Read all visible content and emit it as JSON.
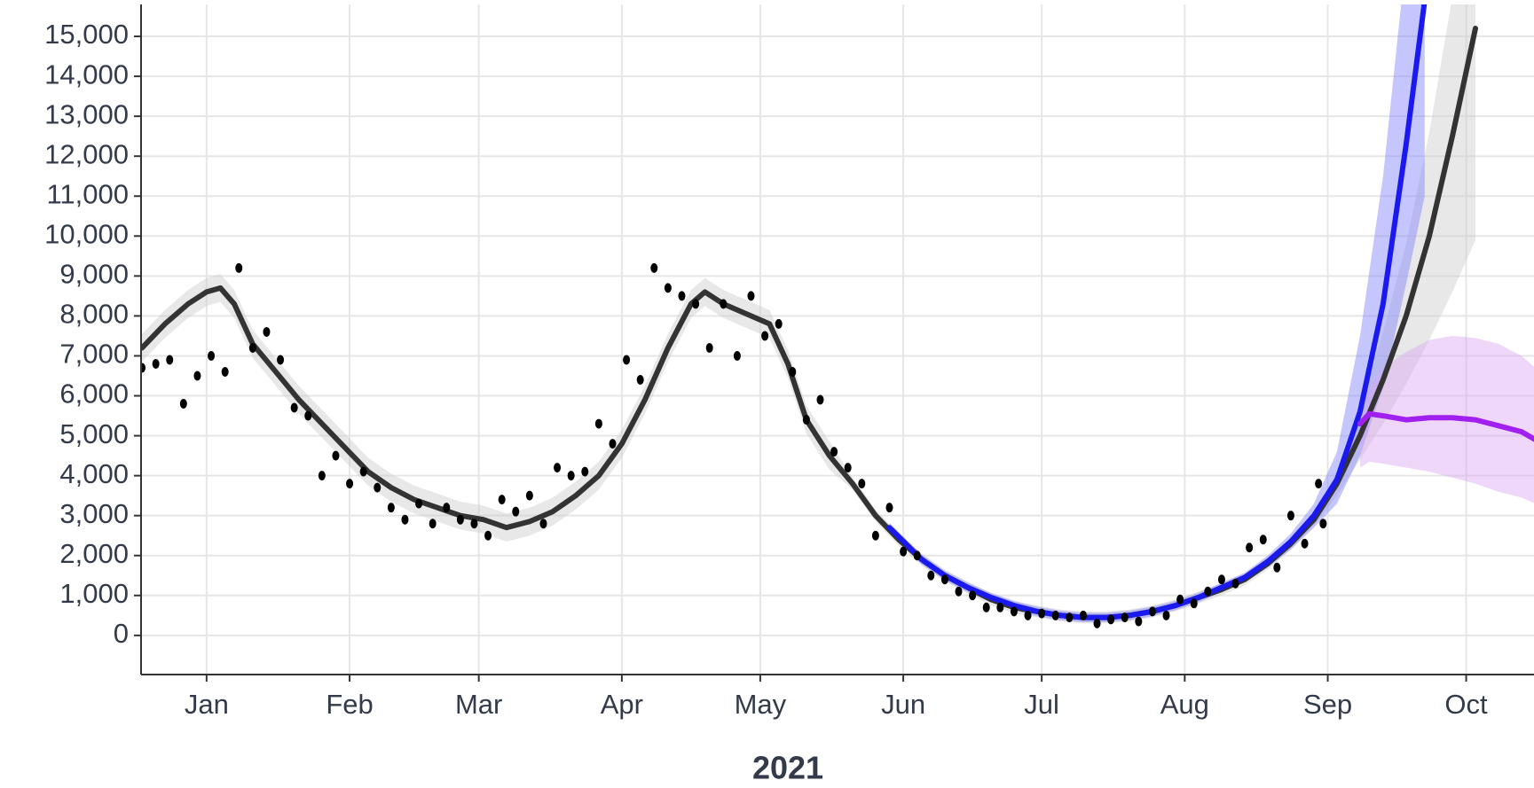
{
  "chart_data": {
    "type": "line",
    "x_label": "2021",
    "grid": true,
    "xlim": [
      -14.2,
      287.7
    ],
    "ylim": [
      -980,
      15800
    ],
    "xticks": [
      {
        "value": 0,
        "label": "Jan"
      },
      {
        "value": 31,
        "label": "Feb"
      },
      {
        "value": 59,
        "label": "Mar"
      },
      {
        "value": 90,
        "label": "Apr"
      },
      {
        "value": 120,
        "label": "May"
      },
      {
        "value": 151,
        "label": "Jun"
      },
      {
        "value": 181,
        "label": "Jul"
      },
      {
        "value": 212,
        "label": "Aug"
      },
      {
        "value": 243,
        "label": "Sep"
      },
      {
        "value": 273,
        "label": "Oct"
      }
    ],
    "yticks": [
      0,
      {
        "value": 1000,
        "label": "1,000"
      },
      {
        "value": 2000,
        "label": "2,000"
      },
      {
        "value": 3000,
        "label": "3,000"
      },
      {
        "value": 4000,
        "label": "4,000"
      },
      {
        "value": 5000,
        "label": "5,000"
      },
      {
        "value": 6000,
        "label": "6,000"
      },
      {
        "value": 7000,
        "label": "7,000"
      },
      {
        "value": 8000,
        "label": "8,000"
      },
      {
        "value": 9000,
        "label": "9,000"
      },
      {
        "value": 10000,
        "label": "10,000"
      },
      {
        "value": 11000,
        "label": "11,000"
      },
      {
        "value": 12000,
        "label": "12,000"
      },
      {
        "value": 13000,
        "label": "13,000"
      },
      {
        "value": 14000,
        "label": "14,000"
      },
      {
        "value": 15000,
        "label": "15,000"
      }
    ],
    "series": [
      {
        "type": "line",
        "color": "#333333",
        "band_color": "#cccccc",
        "x": [
          -14,
          -9,
          -4,
          0,
          3,
          6,
          10,
          15,
          20,
          25,
          30,
          35,
          40,
          45,
          50,
          55,
          60,
          65,
          70,
          75,
          80,
          85,
          90,
          95,
          100,
          105,
          108,
          112,
          118,
          122,
          126,
          130,
          135,
          140,
          145,
          150,
          155,
          160,
          165,
          170,
          175,
          180,
          185,
          190,
          195,
          200,
          205,
          210,
          215,
          220,
          225,
          230,
          235,
          240,
          245,
          250,
          255,
          260,
          265,
          270,
          275
        ],
        "values": [
          7200,
          7800,
          8300,
          8600,
          8700,
          8300,
          7300,
          6600,
          5900,
          5300,
          4700,
          4100,
          3700,
          3400,
          3200,
          3000,
          2900,
          2700,
          2850,
          3100,
          3500,
          4000,
          4800,
          5900,
          7200,
          8300,
          8600,
          8300,
          8000,
          7800,
          6800,
          5400,
          4500,
          3800,
          3000,
          2400,
          1900,
          1500,
          1200,
          900,
          700,
          600,
          500,
          450,
          450,
          500,
          600,
          750,
          950,
          1150,
          1400,
          1800,
          2300,
          2900,
          3800,
          5000,
          6400,
          8000,
          10000,
          12500,
          15200
        ],
        "lower": [
          6850,
          7450,
          7950,
          8250,
          8350,
          7950,
          6950,
          6250,
          5550,
          4950,
          4350,
          3750,
          3350,
          3050,
          2850,
          2650,
          2550,
          2350,
          2500,
          2750,
          3150,
          3650,
          4450,
          5550,
          6850,
          7950,
          8250,
          7950,
          7650,
          7450,
          6450,
          5050,
          4150,
          3650,
          2850,
          2250,
          1750,
          1350,
          1050,
          750,
          550,
          450,
          350,
          300,
          300,
          350,
          450,
          600,
          800,
          1000,
          1250,
          1650,
          2150,
          2750,
          3500,
          4400,
          5300,
          6300,
          7400,
          8600,
          9900
        ],
        "upper": [
          7550,
          8150,
          8650,
          8950,
          9050,
          8650,
          7650,
          6950,
          6250,
          5650,
          5050,
          4450,
          4050,
          3750,
          3550,
          3350,
          3250,
          3050,
          3200,
          3450,
          3850,
          4350,
          5150,
          6250,
          7550,
          8650,
          8950,
          8650,
          8350,
          8150,
          7150,
          5750,
          4850,
          3950,
          3150,
          2550,
          2050,
          1650,
          1350,
          1050,
          850,
          750,
          650,
          600,
          600,
          650,
          750,
          900,
          1100,
          1300,
          1550,
          1950,
          2450,
          3050,
          4100,
          5600,
          7600,
          9800,
          12600,
          16000,
          19000
        ]
      },
      {
        "type": "line",
        "color": "#1a1aee",
        "band_color": "#8080ff",
        "x": [
          148,
          155,
          160,
          165,
          170,
          175,
          180,
          185,
          190,
          195,
          200,
          205,
          210,
          215,
          220,
          225,
          230,
          235,
          240,
          245,
          250,
          255,
          260,
          264
        ],
        "values": [
          2700,
          1900,
          1500,
          1200,
          950,
          750,
          600,
          500,
          450,
          450,
          500,
          600,
          750,
          950,
          1200,
          1450,
          1850,
          2350,
          3000,
          3900,
          5600,
          8300,
          12300,
          15900
        ],
        "lower": [
          2580,
          1780,
          1380,
          1080,
          830,
          630,
          480,
          380,
          330,
          330,
          380,
          480,
          630,
          830,
          1080,
          1330,
          1700,
          2150,
          2700,
          3300,
          4500,
          6200,
          8800,
          11000
        ],
        "upper": [
          2820,
          2020,
          1620,
          1320,
          1070,
          870,
          720,
          620,
          570,
          570,
          620,
          720,
          870,
          1070,
          1320,
          1570,
          2000,
          2550,
          3300,
          4600,
          7500,
          11500,
          17000,
          21000
        ]
      },
      {
        "type": "line",
        "color": "#a020f0",
        "band_color": "#d9a6f2",
        "x": [
          250,
          252,
          255,
          260,
          265,
          270,
          275,
          280,
          285,
          288
        ],
        "values": [
          5300,
          5550,
          5500,
          5400,
          5450,
          5450,
          5400,
          5250,
          5100,
          4900
        ],
        "lower": [
          4200,
          4350,
          4300,
          4200,
          4100,
          3950,
          3800,
          3600,
          3450,
          3300
        ],
        "upper": [
          5500,
          6200,
          6700,
          7100,
          7400,
          7500,
          7450,
          7300,
          7000,
          6700
        ]
      },
      {
        "type": "scatter",
        "color": "#000000",
        "x": [
          -14,
          -11,
          -8,
          -5,
          -2,
          1,
          4,
          7,
          10,
          13,
          16,
          19,
          22,
          25,
          28,
          31,
          34,
          37,
          40,
          43,
          46,
          49,
          52,
          55,
          58,
          61,
          64,
          67,
          70,
          73,
          76,
          79,
          82,
          85,
          88,
          91,
          94,
          97,
          100,
          103,
          106,
          109,
          112,
          115,
          118,
          121,
          124,
          127,
          130,
          133,
          136,
          139,
          142,
          145,
          148,
          151,
          154,
          157,
          160,
          163,
          166,
          169,
          172,
          175,
          178,
          181,
          184,
          187,
          190,
          193,
          196,
          199,
          202,
          205,
          208,
          211,
          214,
          217,
          220,
          223,
          226,
          229,
          232,
          235,
          238,
          241,
          242
        ],
        "values": [
          6700,
          6800,
          6900,
          5800,
          6500,
          7000,
          6600,
          9200,
          7200,
          7600,
          6900,
          5700,
          5500,
          4000,
          4500,
          3800,
          4100,
          3700,
          3200,
          2900,
          3300,
          2800,
          3200,
          2900,
          2800,
          2500,
          3400,
          3100,
          3500,
          2800,
          4200,
          4000,
          4100,
          5300,
          4800,
          6900,
          6400,
          9200,
          8700,
          8500,
          8300,
          7200,
          8300,
          7000,
          8500,
          7500,
          7800,
          6600,
          5400,
          5900,
          4600,
          4200,
          3800,
          2500,
          3200,
          2100,
          2000,
          1500,
          1400,
          1100,
          1000,
          700,
          700,
          600,
          500,
          550,
          500,
          450,
          500,
          300,
          400,
          450,
          350,
          600,
          500,
          900,
          800,
          1100,
          1400,
          1300,
          2200,
          2400,
          1700,
          3000,
          2300,
          3800,
          2800
        ]
      }
    ]
  }
}
